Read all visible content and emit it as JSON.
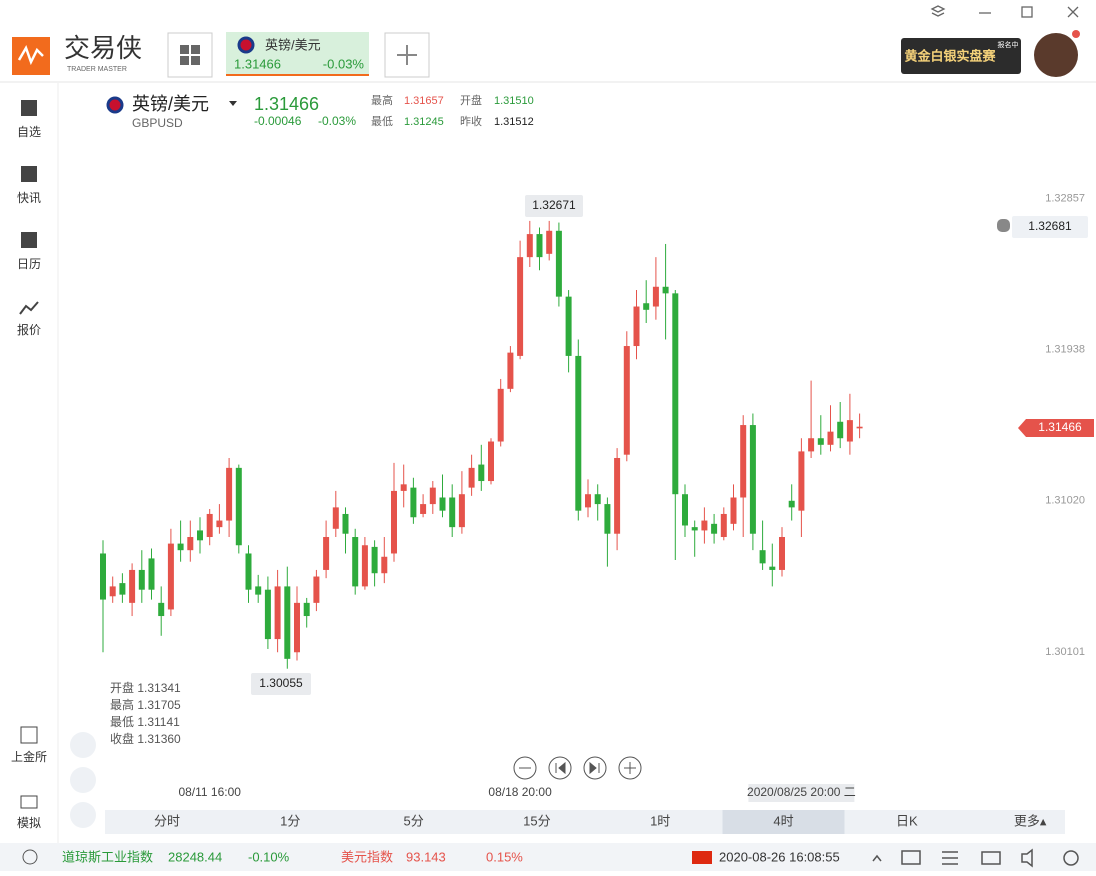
{
  "app": {
    "logo": "交易侠",
    "logo_sub": "TRADER MASTER",
    "tab": {
      "name": "英镑/美元",
      "price": "1.31466",
      "change": "-0.03%"
    },
    "ad": "黄金白银实盘赛",
    "ad_badge": "报名中",
    "sidebar": [
      "自选",
      "快讯",
      "日历",
      "报价"
    ],
    "sidebar_bottom": [
      "上金所",
      "模拟"
    ],
    "quote": {
      "name": "英镑/美元",
      "code": "GBPUSD",
      "price": "1.31466",
      "change": "-0.00046",
      "change_pct": "-0.03%",
      "high_label": "最高",
      "high": "1.31657",
      "open_label": "开盘",
      "open": "1.31510",
      "low_label": "最低",
      "low": "1.31245",
      "prev_label": "昨收",
      "prev": "1.31512"
    },
    "timeframes": [
      "分时",
      "1分",
      "5分",
      "15分",
      "1时",
      "4时",
      "日K",
      "更多▴"
    ],
    "selected_timeframe": 5,
    "status": {
      "dow_name": "道琼斯工业指数",
      "dow_value": "28248.44",
      "dow_change": "-0.10%",
      "usd_name": "美元指数",
      "usd_value": "93.143",
      "usd_change": "0.15%",
      "datetime": "2020-08-26 16:08:55"
    }
  },
  "chart_data": {
    "type": "candlestick",
    "up_color": "#e5534b",
    "down_color": "#2eab3c",
    "ylim": [
      1.2981,
      1.3309
    ],
    "yticks": [
      1.32857,
      1.31938,
      {
        "value": 1.3102,
        "label": "1.31020"
      },
      1.30101
    ],
    "categories": [
      null,
      null,
      null,
      null,
      null,
      null,
      null,
      null,
      null,
      null,
      null,
      "08/11 16:00",
      null,
      null,
      null,
      null,
      null,
      null,
      null,
      null,
      null,
      null,
      null,
      null,
      null,
      null,
      null,
      null,
      null,
      null,
      null,
      null,
      null,
      null,
      null,
      null,
      null,
      null,
      null,
      null,
      null,
      null,
      null,
      "08/18 20:00",
      null,
      null,
      null,
      null,
      null,
      null,
      null,
      null,
      null,
      null,
      null,
      null,
      null,
      null,
      null,
      null,
      null,
      null,
      null,
      null,
      null,
      null,
      null,
      null,
      null,
      null,
      null,
      null,
      "2020/08/25 20:00 二",
      null,
      null,
      null,
      null,
      null,
      null
    ],
    "open": [
      1.307,
      1.3044,
      1.3052,
      1.304,
      1.306,
      1.3067,
      1.304,
      1.3036,
      1.3076,
      1.3072,
      1.3084,
      1.308,
      1.3086,
      1.309,
      1.3122,
      1.307,
      1.305,
      1.3048,
      1.3018,
      1.305,
      1.301,
      1.304,
      1.304,
      1.306,
      1.3085,
      1.3094,
      1.308,
      1.305,
      1.3074,
      1.3058,
      1.307,
      1.3108,
      1.311,
      1.3094,
      1.31,
      1.3104,
      1.3104,
      1.3086,
      1.311,
      1.3124,
      1.3114,
      1.3138,
      1.317,
      1.319,
      1.325,
      1.3264,
      1.3252,
      1.3266,
      1.3226,
      1.319,
      1.3098,
      1.3106,
      1.31,
      1.3082,
      1.313,
      1.3196,
      1.3222,
      1.322,
      1.3232,
      1.3228,
      1.3106,
      1.3086,
      1.3084,
      1.3088,
      1.308,
      1.3088,
      1.3104,
      1.3148,
      1.3072,
      1.3062,
      1.306,
      1.3102,
      1.3096,
      1.3132,
      1.314,
      1.3136,
      1.315,
      1.3138,
      1.3146
    ],
    "close": [
      1.3042,
      1.305,
      1.3045,
      1.306,
      1.3048,
      1.3048,
      1.3032,
      1.3076,
      1.3072,
      1.308,
      1.3078,
      1.3094,
      1.309,
      1.3122,
      1.3075,
      1.3048,
      1.3045,
      1.3018,
      1.305,
      1.3006,
      1.304,
      1.3032,
      1.3056,
      1.308,
      1.3098,
      1.3082,
      1.305,
      1.3075,
      1.3058,
      1.3068,
      1.3108,
      1.3112,
      1.3092,
      1.31,
      1.311,
      1.3096,
      1.3086,
      1.3106,
      1.3122,
      1.3114,
      1.3138,
      1.317,
      1.3192,
      1.325,
      1.3264,
      1.325,
      1.3266,
      1.3226,
      1.319,
      1.3096,
      1.3106,
      1.31,
      1.3082,
      1.3128,
      1.3196,
      1.322,
      1.3218,
      1.3232,
      1.3228,
      1.3106,
      1.3087,
      1.3084,
      1.309,
      1.3082,
      1.3094,
      1.3104,
      1.3148,
      1.3082,
      1.3064,
      1.306,
      1.308,
      1.3098,
      1.3132,
      1.314,
      1.3136,
      1.3144,
      1.314,
      1.3151,
      1.3147
    ],
    "high": [
      1.3078,
      1.3056,
      1.3058,
      1.3064,
      1.3072,
      1.3073,
      1.305,
      1.3085,
      1.309,
      1.309,
      1.3092,
      1.3097,
      1.31,
      1.3128,
      1.3124,
      1.3075,
      1.3057,
      1.3056,
      1.306,
      1.3062,
      1.305,
      1.3043,
      1.306,
      1.309,
      1.3108,
      1.3098,
      1.3085,
      1.308,
      1.3078,
      1.308,
      1.3125,
      1.3124,
      1.3116,
      1.3106,
      1.3114,
      1.3118,
      1.3112,
      1.312,
      1.313,
      1.3136,
      1.314,
      1.3176,
      1.3196,
      1.326,
      1.3272,
      1.3268,
      1.3272,
      1.3271,
      1.323,
      1.32,
      1.3115,
      1.3112,
      1.3104,
      1.3134,
      1.3205,
      1.323,
      1.3236,
      1.325,
      1.3258,
      1.323,
      1.3112,
      1.309,
      1.3098,
      1.3094,
      1.3098,
      1.3112,
      1.3154,
      1.3155,
      1.309,
      1.3076,
      1.3086,
      1.3112,
      1.314,
      1.3175,
      1.3154,
      1.316,
      1.3162,
      1.3167,
      1.3155
    ],
    "low": [
      1.301,
      1.304,
      1.304,
      1.3032,
      1.304,
      1.3042,
      1.302,
      1.3032,
      1.3065,
      1.3065,
      1.307,
      1.3075,
      1.3082,
      1.308,
      1.307,
      1.304,
      1.304,
      1.3012,
      1.301,
      1.3,
      1.3005,
      1.3025,
      1.3035,
      1.3055,
      1.308,
      1.307,
      1.3045,
      1.3048,
      1.305,
      1.3052,
      1.3065,
      1.3098,
      1.3088,
      1.3092,
      1.3094,
      1.3092,
      1.308,
      1.3082,
      1.3105,
      1.3108,
      1.3112,
      1.3135,
      1.3168,
      1.3188,
      1.3244,
      1.3242,
      1.3248,
      1.322,
      1.318,
      1.309,
      1.3092,
      1.309,
      1.3062,
      1.3072,
      1.3126,
      1.3188,
      1.321,
      1.3212,
      1.32,
      1.3066,
      1.308,
      1.3068,
      1.3076,
      1.3076,
      1.3078,
      1.3084,
      1.308,
      1.3072,
      1.306,
      1.305,
      1.3056,
      1.309,
      1.308,
      1.3128,
      1.313,
      1.3132,
      1.3134,
      1.313,
      1.314
    ],
    "high_label": "1.32671",
    "low_label": "1.30055",
    "last_label": "1.31466",
    "crosshair_label": "1.32681",
    "info": [
      "开盘 1.31341",
      "最高 1.31705",
      "最低 1.31141",
      "收盘 1.31360"
    ]
  }
}
